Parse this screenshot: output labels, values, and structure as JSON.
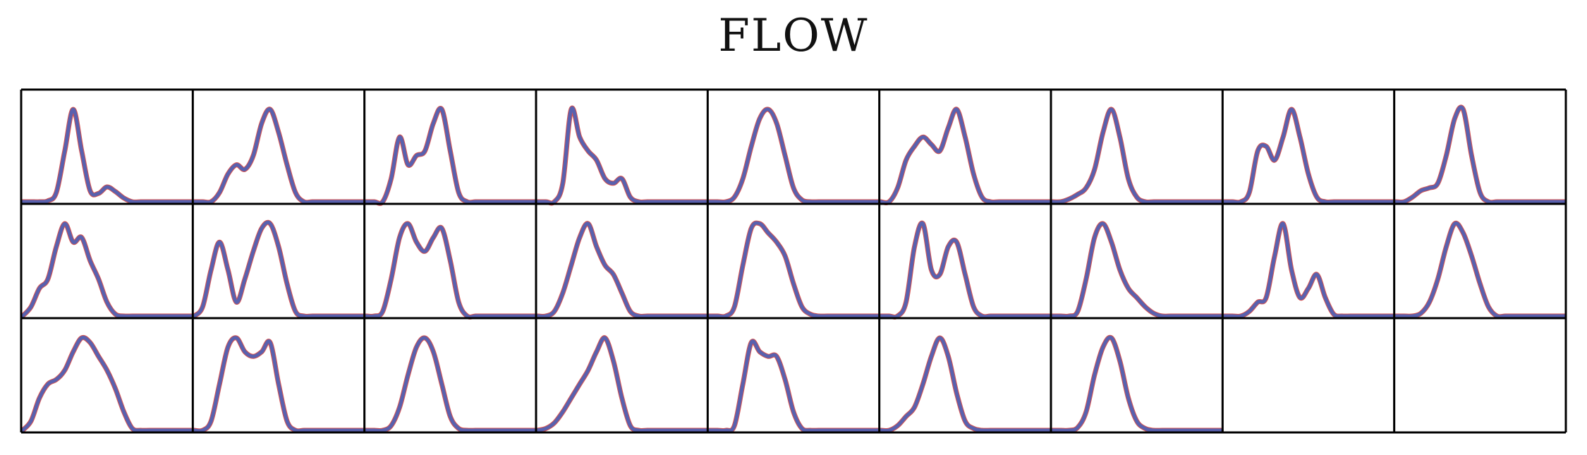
{
  "chart_data": {
    "type": "line",
    "title": "FLOW",
    "grid": {
      "rows": 3,
      "cols": 9
    },
    "series_colors": {
      "reference": "#d9534f",
      "estimate": "#4a63b8"
    },
    "x": [
      0,
      0.05,
      0.1,
      0.15,
      0.2,
      0.25,
      0.3,
      0.35,
      0.4,
      0.45,
      0.5,
      0.55,
      0.6,
      0.65,
      0.7,
      0.75,
      0.8,
      0.85,
      0.9,
      0.95,
      1
    ],
    "panels": [
      [
        0,
        0,
        0,
        0.01,
        0.1,
        0.55,
        1,
        0.55,
        0.12,
        0.09,
        0.16,
        0.11,
        0.04,
        0,
        0,
        0,
        0,
        0,
        0,
        0,
        0
      ],
      [
        0,
        0,
        0,
        0.1,
        0.3,
        0.4,
        0.35,
        0.5,
        0.85,
        1,
        0.75,
        0.4,
        0.1,
        0,
        0,
        0,
        0,
        0,
        0,
        0,
        0
      ],
      [
        0,
        0,
        0,
        0.25,
        0.7,
        0.4,
        0.5,
        0.55,
        0.85,
        1,
        0.55,
        0.1,
        0,
        0,
        0,
        0,
        0,
        0,
        0,
        0,
        0
      ],
      [
        0,
        0,
        0,
        0.2,
        1,
        0.7,
        0.55,
        0.45,
        0.25,
        0.2,
        0.25,
        0.05,
        0,
        0,
        0,
        0,
        0,
        0,
        0,
        0,
        0
      ],
      [
        0,
        0,
        0,
        0.05,
        0.25,
        0.6,
        0.9,
        1,
        0.85,
        0.5,
        0.15,
        0.02,
        0,
        0,
        0,
        0,
        0,
        0,
        0,
        0,
        0
      ],
      [
        0,
        0,
        0.15,
        0.45,
        0.6,
        0.7,
        0.62,
        0.55,
        0.8,
        1,
        0.7,
        0.3,
        0.05,
        0,
        0,
        0,
        0,
        0,
        0,
        0,
        0
      ],
      [
        0,
        0,
        0.03,
        0.08,
        0.15,
        0.35,
        0.75,
        1,
        0.7,
        0.25,
        0.05,
        0,
        0,
        0,
        0,
        0,
        0,
        0,
        0,
        0,
        0
      ],
      [
        0,
        0,
        0,
        0.1,
        0.55,
        0.6,
        0.45,
        0.7,
        1,
        0.7,
        0.3,
        0.05,
        0,
        0,
        0,
        0,
        0,
        0,
        0,
        0,
        0
      ],
      [
        0,
        0,
        0.05,
        0.12,
        0.15,
        0.2,
        0.5,
        0.9,
        1,
        0.5,
        0.1,
        0,
        0,
        0,
        0,
        0,
        0,
        0,
        0,
        0,
        0
      ],
      [
        0,
        0.1,
        0.3,
        0.4,
        0.75,
        1,
        0.8,
        0.85,
        0.6,
        0.4,
        0.15,
        0.02,
        0,
        0,
        0,
        0,
        0,
        0,
        0,
        0,
        0
      ],
      [
        0,
        0.1,
        0.5,
        0.8,
        0.5,
        0.15,
        0.4,
        0.7,
        0.95,
        1,
        0.75,
        0.35,
        0.05,
        0,
        0,
        0,
        0,
        0,
        0,
        0,
        0
      ],
      [
        0,
        0,
        0.05,
        0.4,
        0.85,
        1,
        0.8,
        0.7,
        0.85,
        0.95,
        0.6,
        0.15,
        0,
        0,
        0,
        0,
        0,
        0,
        0,
        0,
        0
      ],
      [
        0,
        0,
        0.05,
        0.25,
        0.55,
        0.85,
        1,
        0.75,
        0.55,
        0.45,
        0.25,
        0.05,
        0,
        0,
        0,
        0,
        0,
        0,
        0,
        0,
        0
      ],
      [
        0,
        0,
        0,
        0.1,
        0.55,
        0.95,
        1,
        0.9,
        0.8,
        0.65,
        0.35,
        0.1,
        0.02,
        0,
        0,
        0,
        0,
        0,
        0,
        0,
        0
      ],
      [
        0,
        0,
        0,
        0.15,
        0.75,
        1,
        0.5,
        0.45,
        0.75,
        0.8,
        0.45,
        0.1,
        0,
        0,
        0,
        0,
        0,
        0,
        0,
        0,
        0
      ],
      [
        0,
        0,
        0,
        0.05,
        0.4,
        0.85,
        1,
        0.8,
        0.5,
        0.3,
        0.2,
        0.1,
        0.03,
        0,
        0,
        0,
        0,
        0,
        0,
        0,
        0
      ],
      [
        0,
        0,
        0,
        0.05,
        0.15,
        0.2,
        0.65,
        1,
        0.5,
        0.2,
        0.3,
        0.45,
        0.2,
        0.02,
        0,
        0,
        0,
        0,
        0,
        0,
        0
      ],
      [
        0,
        0,
        0,
        0.03,
        0.15,
        0.4,
        0.75,
        1,
        0.9,
        0.65,
        0.35,
        0.1,
        0,
        0,
        0,
        0,
        0,
        0,
        0,
        0,
        0
      ],
      [
        0,
        0.1,
        0.35,
        0.5,
        0.55,
        0.65,
        0.85,
        1,
        0.95,
        0.8,
        0.65,
        0.45,
        0.2,
        0.02,
        0,
        0,
        0,
        0,
        0,
        0,
        0
      ],
      [
        0,
        0,
        0.1,
        0.5,
        0.9,
        1,
        0.85,
        0.8,
        0.85,
        0.95,
        0.5,
        0.1,
        0,
        0,
        0,
        0,
        0,
        0,
        0,
        0,
        0
      ],
      [
        0,
        0,
        0,
        0.05,
        0.25,
        0.6,
        0.9,
        1,
        0.85,
        0.5,
        0.15,
        0.02,
        0,
        0,
        0,
        0,
        0,
        0,
        0,
        0,
        0
      ],
      [
        0,
        0.02,
        0.08,
        0.2,
        0.35,
        0.5,
        0.65,
        0.85,
        1,
        0.75,
        0.35,
        0.05,
        0,
        0,
        0,
        0,
        0,
        0,
        0,
        0,
        0
      ],
      [
        0,
        0,
        0,
        0.05,
        0.5,
        0.95,
        0.85,
        0.8,
        0.8,
        0.55,
        0.2,
        0.02,
        0,
        0,
        0,
        0,
        0,
        0,
        0,
        0,
        0
      ],
      [
        0,
        0,
        0.05,
        0.15,
        0.25,
        0.5,
        0.8,
        1,
        0.8,
        0.4,
        0.1,
        0.02,
        0,
        0,
        0,
        0,
        0,
        0,
        0,
        0,
        0
      ],
      [
        0,
        0,
        0,
        0.03,
        0.2,
        0.6,
        0.9,
        1,
        0.75,
        0.35,
        0.1,
        0.02,
        0,
        0,
        0,
        0,
        0,
        0,
        0,
        0,
        0
      ]
    ]
  }
}
